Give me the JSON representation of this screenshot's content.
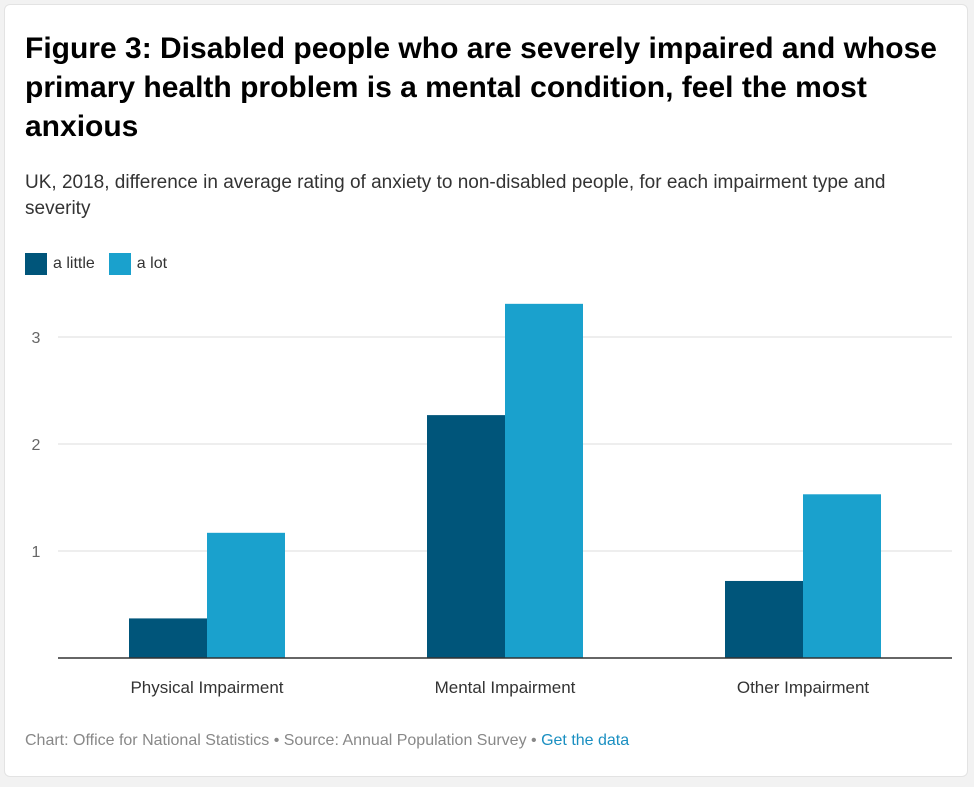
{
  "header": {
    "title": "Figure 3: Disabled people who are severely impaired and whose primary health problem is a mental condition, feel the most anxious",
    "subtitle": "UK, 2018, difference in average rating of anxiety to non-disabled people, for each impairment type and severity"
  },
  "footer": {
    "chart_credit": "Chart: Office for National Statistics",
    "separator": " • ",
    "source": "Source: Annual Population Survey",
    "link_label": "Get the data"
  },
  "colors": {
    "a_little": "#00557a",
    "a_lot": "#1aa1cd",
    "grid": "#dddddd",
    "axis": "#333333"
  },
  "chart_data": {
    "type": "bar",
    "title": "Figure 3: Disabled people who are severely impaired and whose primary health problem is a mental condition, feel the most anxious",
    "subtitle": "UK, 2018, difference in average rating of anxiety to non-disabled people, for each impairment type and severity",
    "categories": [
      "Physical Impairment",
      "Mental Impairment",
      "Other Impairment"
    ],
    "series": [
      {
        "name": "a little",
        "color": "#00557a",
        "values": [
          0.37,
          2.27,
          0.72
        ]
      },
      {
        "name": "a lot",
        "color": "#1aa1cd",
        "values": [
          1.17,
          3.31,
          1.53
        ]
      }
    ],
    "yticks": [
      1,
      2,
      3
    ],
    "ylim": [
      0,
      3.4
    ],
    "xlabel": "",
    "ylabel": "",
    "grid": true,
    "legend_position": "top-left"
  }
}
